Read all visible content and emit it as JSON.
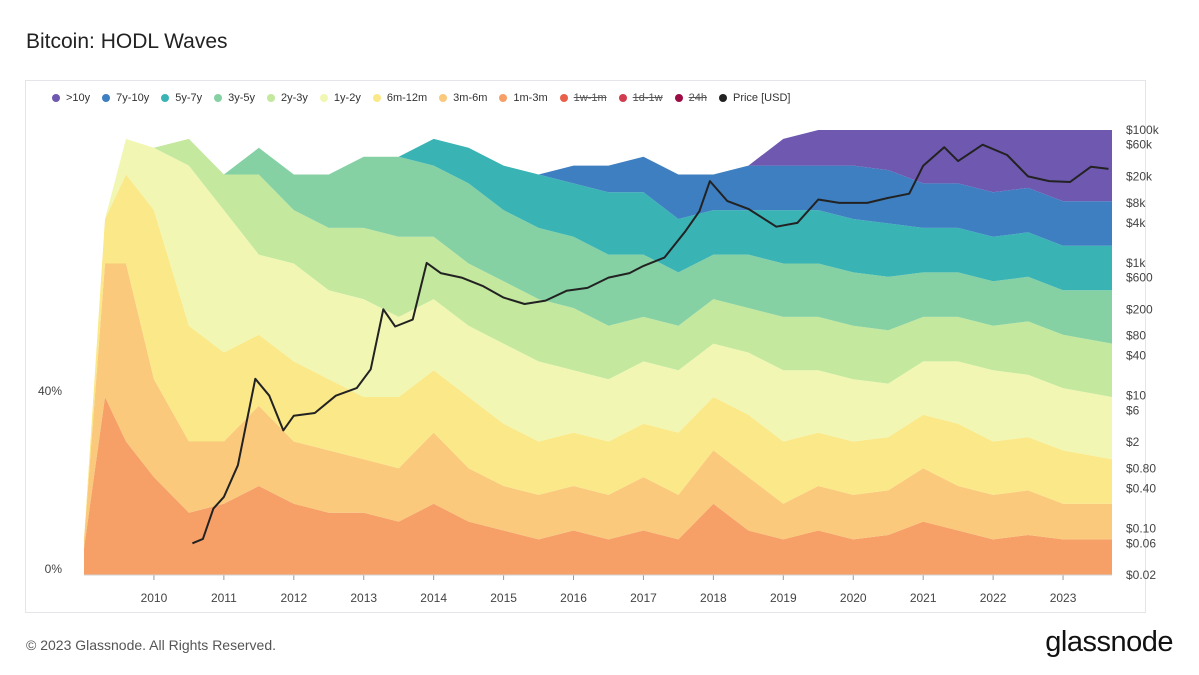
{
  "title": "Bitcoin: HODL Waves",
  "footer": "© 2023 Glassnode. All Rights Reserved.",
  "logo": "glassnode",
  "watermark": "glassnode",
  "legend": [
    {
      "label": ">10y",
      "color": "#6f58b0",
      "active": true
    },
    {
      "label": "7y-10y",
      "color": "#3d7fc1",
      "active": true
    },
    {
      "label": "5y-7y",
      "color": "#3ab3b5",
      "active": true
    },
    {
      "label": "3y-5y",
      "color": "#85d1a4",
      "active": true
    },
    {
      "label": "2y-3y",
      "color": "#c3e89e",
      "active": true
    },
    {
      "label": "1y-2y",
      "color": "#f1f7b2",
      "active": true
    },
    {
      "label": "6m-12m",
      "color": "#fbe889",
      "active": true
    },
    {
      "label": "3m-6m",
      "color": "#fac97c",
      "active": true
    },
    {
      "label": "1m-3m",
      "color": "#f6a067",
      "active": true
    },
    {
      "label": "1w-1m",
      "color": "#e8604a",
      "active": false
    },
    {
      "label": "1d-1w",
      "color": "#d23c4e",
      "active": false
    },
    {
      "label": "24h",
      "color": "#9b0d43",
      "active": false
    },
    {
      "label": "Price [USD]",
      "color": "#222222",
      "active": true
    }
  ],
  "chart_data": {
    "type": "area",
    "stacked": true,
    "x_ticks": [
      "2010",
      "2011",
      "2012",
      "2013",
      "2014",
      "2015",
      "2016",
      "2017",
      "2018",
      "2019",
      "2020",
      "2021",
      "2022",
      "2023"
    ],
    "y_left_ticks": [
      "0%",
      "40%"
    ],
    "y_right_ticks": [
      "$100k",
      "$60k",
      "$20k",
      "$8k",
      "$4k",
      "$1k",
      "$600",
      "$200",
      "$80",
      "$40",
      "$10",
      "$6",
      "$2",
      "$0.80",
      "$0.40",
      "$0.10",
      "$0.06",
      "$0.02"
    ],
    "y_right_values": [
      100000,
      60000,
      20000,
      8000,
      4000,
      1000,
      600,
      200,
      80,
      40,
      10,
      6,
      2,
      0.8,
      0.4,
      0.1,
      0.06,
      0.02
    ],
    "y_right_scale": "log",
    "band_names": [
      "1m-3m",
      "3m-6m",
      "6m-12m",
      "1y-2y",
      "2y-3y",
      "3y-5y",
      "5y-7y",
      "7y-10y",
      ">10y"
    ],
    "band_colors": [
      "#f6a067",
      "#fac97c",
      "#fbe889",
      "#f1f7b2",
      "#c3e89e",
      "#85d1a4",
      "#3ab3b5",
      "#3d7fc1",
      "#6f58b0"
    ],
    "x": [
      2009.0,
      2009.3,
      2009.6,
      2010.0,
      2010.5,
      2011.0,
      2011.5,
      2012.0,
      2012.5,
      2013.0,
      2013.5,
      2014.0,
      2014.5,
      2015.0,
      2015.5,
      2016.0,
      2016.5,
      2017.0,
      2017.5,
      2018.0,
      2018.5,
      2019.0,
      2019.5,
      2020.0,
      2020.5,
      2021.0,
      2021.5,
      2022.0,
      2022.5,
      2023.0,
      2023.7
    ],
    "series": [
      {
        "name": "1m-3m",
        "values": [
          6,
          40,
          30,
          22,
          14,
          16,
          20,
          16,
          14,
          14,
          12,
          16,
          12,
          10,
          8,
          10,
          8,
          10,
          8,
          16,
          10,
          8,
          10,
          8,
          9,
          12,
          10,
          8,
          9,
          8,
          8
        ]
      },
      {
        "name": "3m-6m",
        "values": [
          2,
          30,
          40,
          22,
          16,
          14,
          18,
          14,
          14,
          12,
          12,
          16,
          12,
          10,
          10,
          10,
          10,
          12,
          10,
          12,
          12,
          8,
          10,
          10,
          10,
          12,
          10,
          10,
          10,
          8,
          8
        ]
      },
      {
        "name": "6m-12m",
        "values": [
          0,
          10,
          20,
          38,
          26,
          20,
          16,
          18,
          16,
          14,
          16,
          14,
          16,
          14,
          12,
          12,
          12,
          12,
          14,
          12,
          14,
          14,
          12,
          12,
          12,
          12,
          14,
          12,
          12,
          12,
          10
        ]
      },
      {
        "name": "1y-2y",
        "values": [
          0,
          0,
          8,
          14,
          36,
          32,
          18,
          22,
          20,
          22,
          18,
          16,
          16,
          18,
          18,
          14,
          14,
          14,
          14,
          12,
          14,
          16,
          14,
          14,
          12,
          12,
          14,
          16,
          14,
          14,
          14
        ]
      },
      {
        "name": "2y-3y",
        "values": [
          0,
          0,
          0,
          0,
          6,
          8,
          18,
          12,
          14,
          16,
          18,
          14,
          14,
          14,
          14,
          14,
          12,
          10,
          10,
          10,
          10,
          12,
          12,
          12,
          12,
          10,
          10,
          10,
          12,
          12,
          12
        ]
      },
      {
        "name": "3y-5y",
        "values": [
          0,
          0,
          0,
          0,
          0,
          0,
          6,
          8,
          12,
          16,
          18,
          16,
          18,
          16,
          16,
          16,
          16,
          14,
          12,
          10,
          12,
          12,
          12,
          12,
          12,
          10,
          10,
          10,
          10,
          10,
          12
        ]
      },
      {
        "name": "5y-7y",
        "values": [
          0,
          0,
          0,
          0,
          0,
          0,
          0,
          0,
          0,
          0,
          0,
          6,
          8,
          10,
          12,
          12,
          14,
          14,
          12,
          10,
          10,
          12,
          12,
          12,
          12,
          10,
          10,
          10,
          10,
          10,
          10
        ]
      },
      {
        "name": "7y-10y",
        "values": [
          0,
          0,
          0,
          0,
          0,
          0,
          0,
          0,
          0,
          0,
          0,
          0,
          0,
          0,
          0,
          4,
          6,
          8,
          10,
          8,
          10,
          10,
          10,
          12,
          12,
          10,
          10,
          10,
          10,
          10,
          10
        ]
      },
      {
        "name": ">10y",
        "values": [
          0,
          0,
          0,
          0,
          0,
          0,
          0,
          0,
          0,
          0,
          0,
          0,
          0,
          0,
          0,
          0,
          0,
          0,
          0,
          0,
          0,
          6,
          8,
          8,
          10,
          12,
          12,
          14,
          14,
          16,
          16
        ]
      }
    ],
    "price_series": {
      "name": "Price [USD]",
      "x": [
        2010.55,
        2010.7,
        2010.85,
        2011.0,
        2011.2,
        2011.45,
        2011.65,
        2011.85,
        2012.0,
        2012.3,
        2012.6,
        2012.9,
        2013.1,
        2013.28,
        2013.45,
        2013.7,
        2013.9,
        2014.1,
        2014.4,
        2014.7,
        2015.0,
        2015.3,
        2015.6,
        2015.9,
        2016.2,
        2016.5,
        2016.8,
        2017.0,
        2017.3,
        2017.6,
        2017.8,
        2017.95,
        2018.2,
        2018.5,
        2018.9,
        2019.2,
        2019.5,
        2019.8,
        2020.2,
        2020.5,
        2020.8,
        2021.0,
        2021.3,
        2021.5,
        2021.85,
        2022.2,
        2022.5,
        2022.8,
        2023.1,
        2023.4,
        2023.65
      ],
      "values": [
        0.06,
        0.07,
        0.2,
        0.3,
        0.9,
        18,
        10,
        3,
        5,
        5.5,
        10,
        13,
        25,
        200,
        110,
        140,
        1000,
        700,
        600,
        450,
        300,
        240,
        270,
        380,
        420,
        600,
        700,
        900,
        1200,
        3000,
        6000,
        17000,
        8500,
        6500,
        3500,
        4000,
        9000,
        8000,
        8000,
        9500,
        11000,
        29000,
        55000,
        34000,
        60000,
        42000,
        20000,
        17000,
        16500,
        28000,
        26000
      ]
    },
    "grid": false,
    "legend_position": "top-left"
  }
}
